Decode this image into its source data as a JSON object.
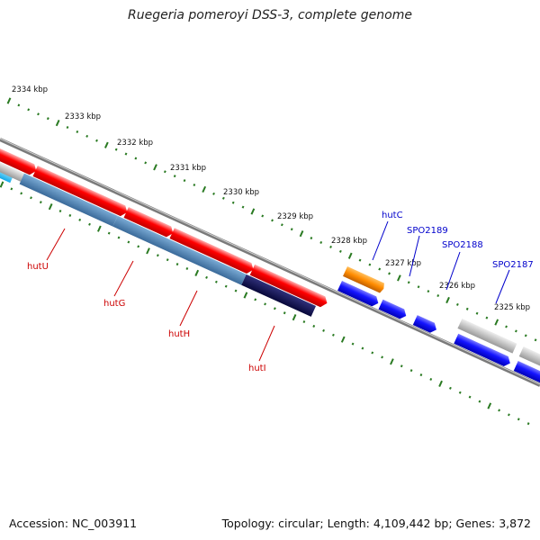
{
  "title": "Ruegeria pomeroyi DSS-3, complete genome",
  "footer": {
    "accession": "Accession: NC_003911",
    "summary": "Topology: circular; Length: 4,109,442 bp; Genes: 3,872"
  },
  "colors": {
    "backbone": "#777777",
    "tick": "#2a7a22",
    "red_gene": "#ff0000",
    "blue_gene": "#1414ff",
    "steel_gene": "#4682b4",
    "navy_gene": "#10105a",
    "orange_gene": "#ff8c00",
    "grey_gene": "#bbbbbb",
    "cyan_gene": "#1ec8ff",
    "label_red": "#cc0000",
    "label_blue": "#0000cc"
  },
  "kbp_labels": [
    "2334 kbp",
    "2333 kbp",
    "2332 kbp",
    "2331 kbp",
    "2330 kbp",
    "2329 kbp",
    "2328 kbp",
    "2327 kbp",
    "2326 kbp",
    "2325 kbp"
  ],
  "gene_labels": {
    "red": [
      "hutU",
      "hutG",
      "hutH",
      "hutI"
    ],
    "blue": [
      "hutC",
      "SPO2189",
      "SPO2188",
      "SPO2187"
    ]
  }
}
